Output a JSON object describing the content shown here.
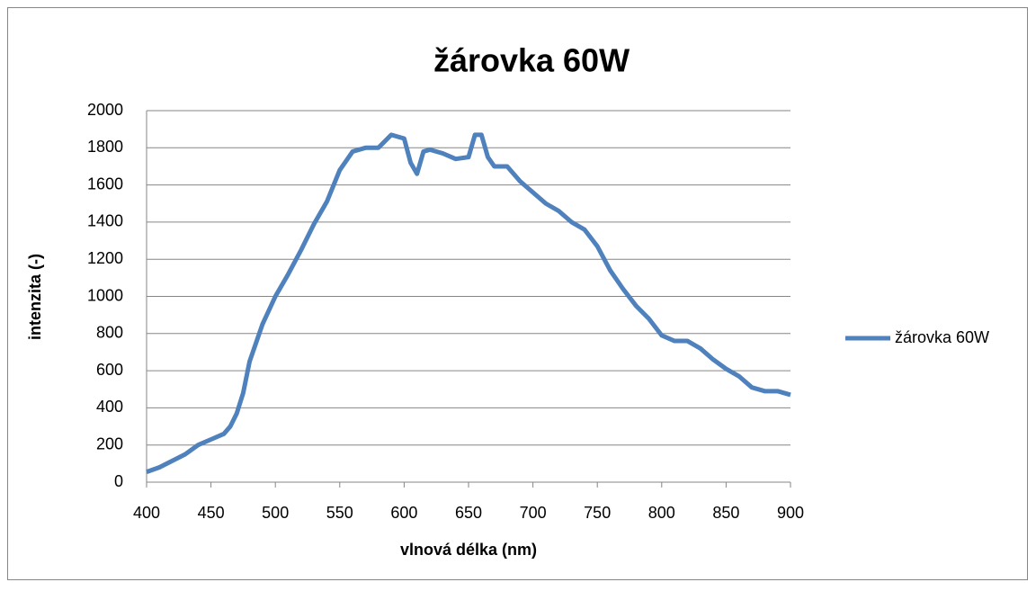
{
  "chart_data": {
    "type": "line",
    "title": "žárovka 60W",
    "xlabel": "vlnová délka (nm)",
    "ylabel": "intenzita (-)",
    "x": [
      400,
      410,
      420,
      430,
      440,
      450,
      460,
      465,
      470,
      475,
      480,
      490,
      500,
      510,
      520,
      530,
      540,
      550,
      560,
      570,
      580,
      590,
      600,
      605,
      610,
      615,
      620,
      630,
      640,
      650,
      655,
      660,
      665,
      670,
      680,
      690,
      700,
      710,
      720,
      730,
      740,
      750,
      760,
      770,
      780,
      790,
      800,
      810,
      820,
      830,
      840,
      850,
      860,
      870,
      880,
      890,
      900
    ],
    "series": [
      {
        "name": "žárovka 60W",
        "color": "#4f81bd",
        "values": [
          55,
          80,
          115,
          150,
          200,
          230,
          260,
          300,
          370,
          480,
          650,
          850,
          1000,
          1120,
          1250,
          1390,
          1510,
          1680,
          1780,
          1800,
          1800,
          1870,
          1850,
          1720,
          1660,
          1780,
          1790,
          1770,
          1740,
          1750,
          1870,
          1870,
          1750,
          1700,
          1700,
          1620,
          1560,
          1500,
          1460,
          1400,
          1360,
          1270,
          1140,
          1040,
          950,
          880,
          790,
          760,
          760,
          720,
          660,
          610,
          570,
          510,
          490,
          490,
          470
        ]
      }
    ],
    "xlim": [
      400,
      900
    ],
    "xticks": [
      400,
      450,
      500,
      550,
      600,
      650,
      700,
      750,
      800,
      850,
      900
    ],
    "ylim": [
      0,
      2000
    ],
    "yticks": [
      0,
      200,
      400,
      600,
      800,
      1000,
      1200,
      1400,
      1600,
      1800,
      2000
    ],
    "grid": true,
    "legend": "right"
  }
}
